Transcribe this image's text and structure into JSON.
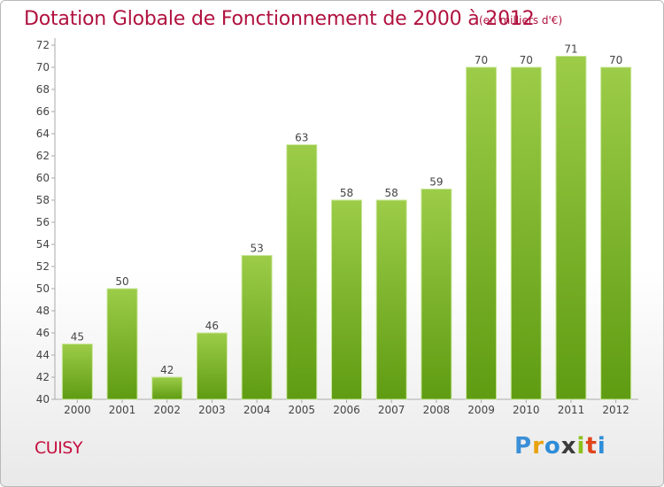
{
  "header": {
    "title": "Dotation Globale de Fonctionnement de 2000 à 2012",
    "subtitle": "(en milliers d'€)"
  },
  "footer": {
    "place": "CUISY",
    "logo": "Proxiti"
  },
  "colors": {
    "title": "#b0123f",
    "bar_light": "#9ccc48",
    "bar_dark": "#5f9c12",
    "axis": "#aaaaaa"
  },
  "chart_data": {
    "type": "bar",
    "title": "Dotation Globale de Fonctionnement de 2000 à 2012",
    "subtitle": "(en milliers d'€)",
    "xlabel": "",
    "ylabel": "",
    "categories": [
      "2000",
      "2001",
      "2002",
      "2003",
      "2004",
      "2005",
      "2006",
      "2007",
      "2008",
      "2009",
      "2010",
      "2011",
      "2012"
    ],
    "values": [
      45,
      50,
      42,
      46,
      53,
      63,
      58,
      58,
      59,
      70,
      70,
      71,
      70
    ],
    "ylim": [
      40,
      72
    ],
    "yticks": [
      40,
      42,
      44,
      46,
      48,
      50,
      52,
      54,
      56,
      58,
      60,
      62,
      64,
      66,
      68,
      70,
      72
    ],
    "grid": false,
    "legend": "none"
  }
}
